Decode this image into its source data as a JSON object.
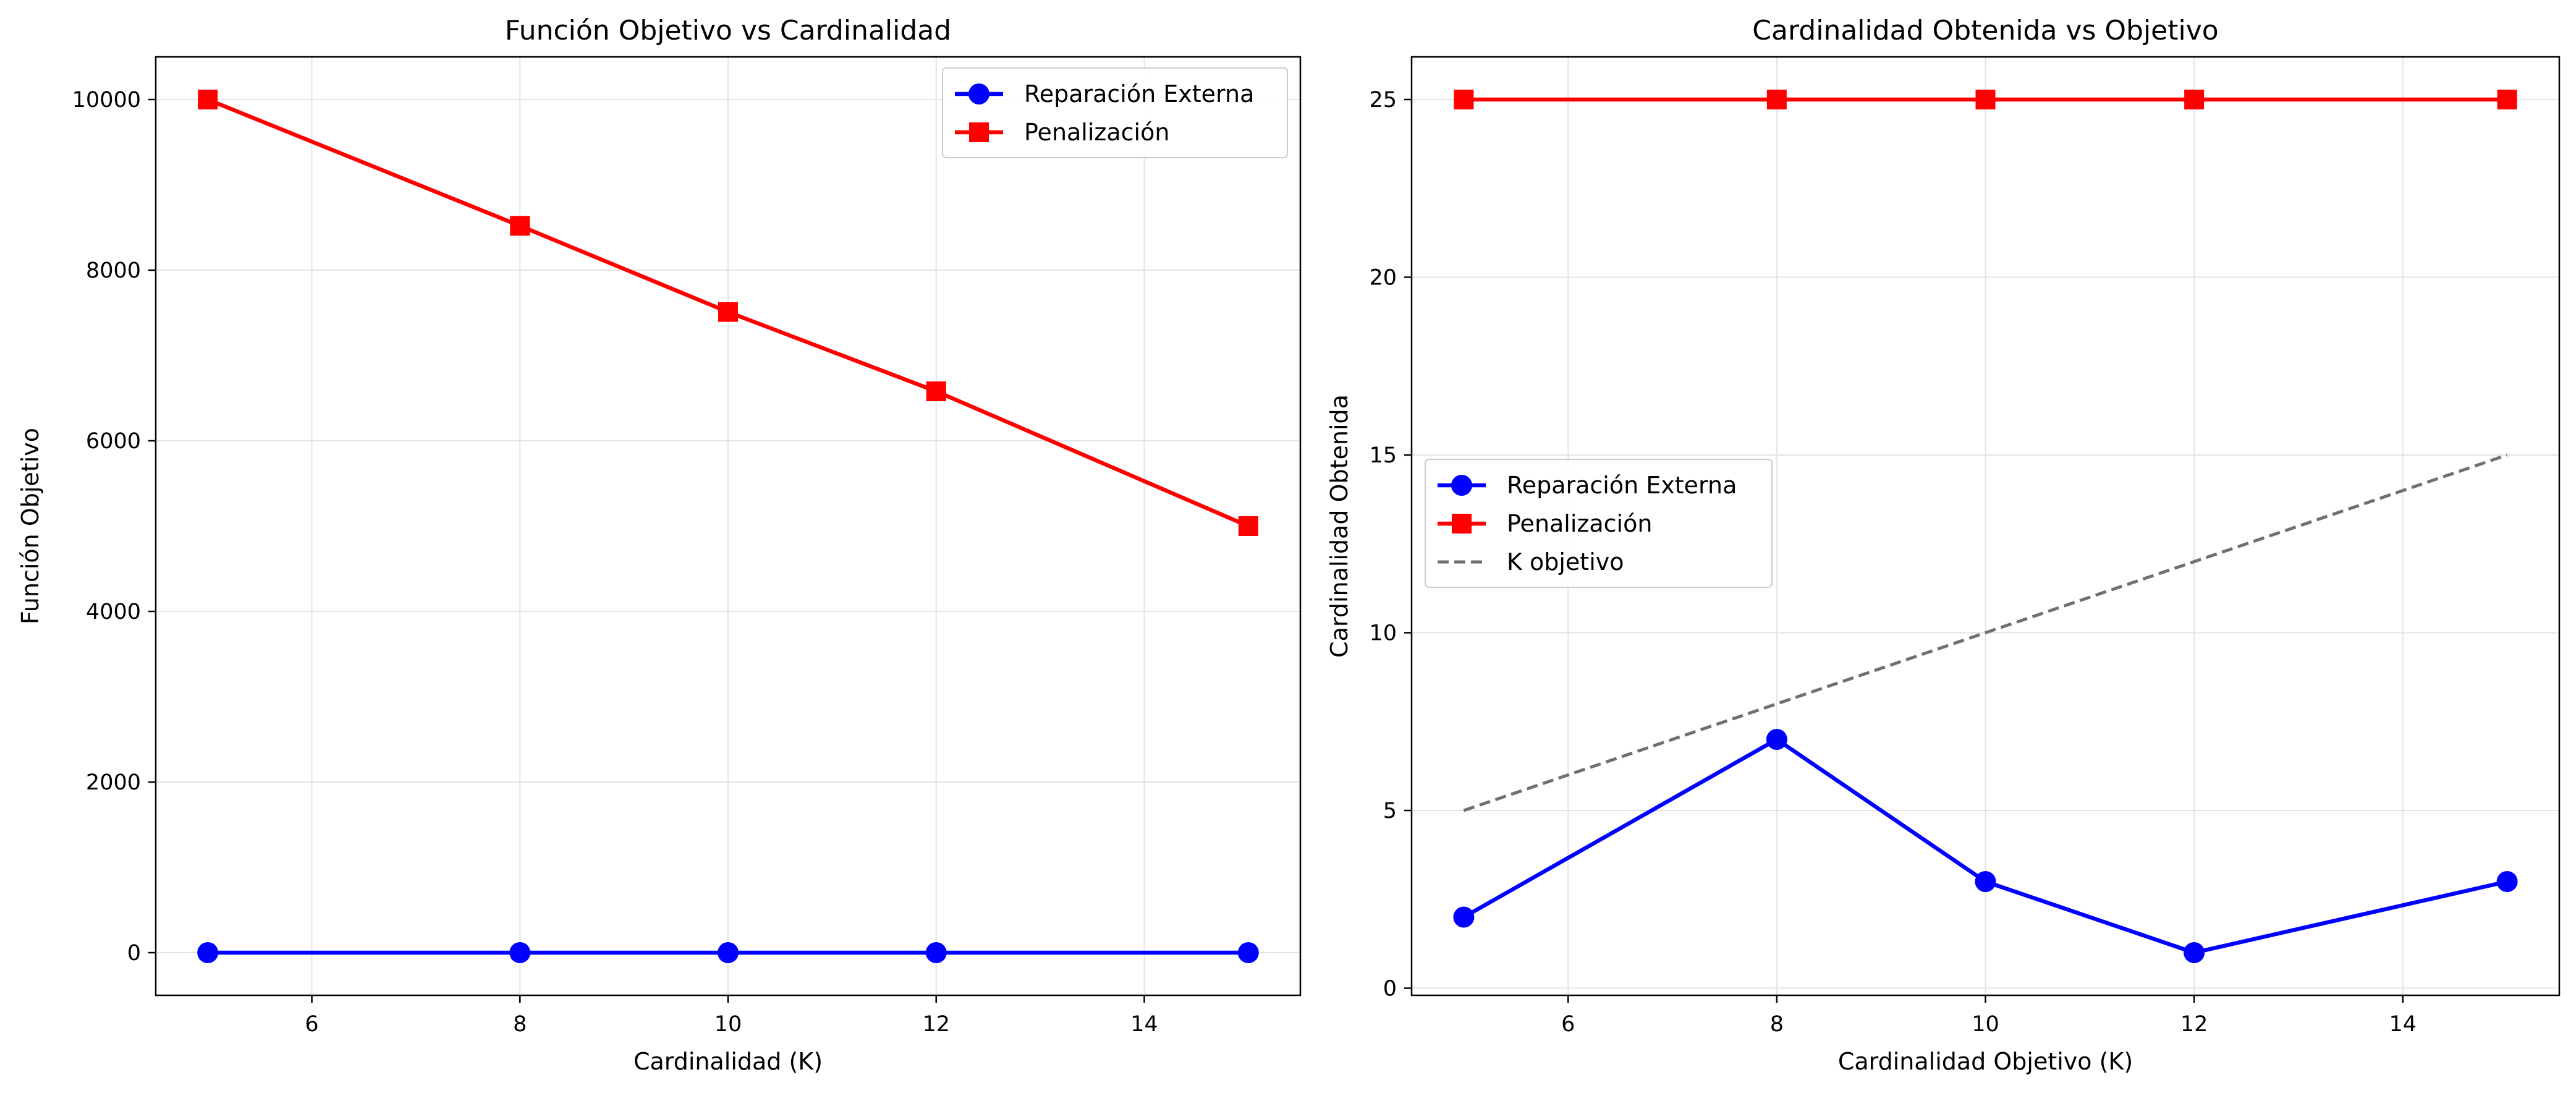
{
  "chart_data": [
    {
      "type": "line",
      "title": "Función Objetivo vs Cardinalidad",
      "xlabel": "Cardinalidad (K)",
      "ylabel": "Función Objetivo",
      "xlim": [
        4.5,
        15.5
      ],
      "ylim": [
        -500,
        10500
      ],
      "xticks": [
        6,
        8,
        10,
        12,
        14
      ],
      "yticks": [
        0,
        2000,
        4000,
        6000,
        8000,
        10000
      ],
      "grid": true,
      "legend_position": "upper right",
      "x": [
        5,
        8,
        10,
        12,
        15
      ],
      "series": [
        {
          "name": "Reparación Externa",
          "values": [
            0,
            0,
            0,
            0,
            0
          ],
          "color": "#0000ff",
          "marker": "circle",
          "style": "solid"
        },
        {
          "name": "Penalización",
          "values": [
            10000,
            8520,
            7510,
            6580,
            5000
          ],
          "color": "#ff0000",
          "marker": "square",
          "style": "solid"
        }
      ]
    },
    {
      "type": "line",
      "title": "Cardinalidad Obtenida vs Objetivo",
      "xlabel": "Cardinalidad Objetivo (K)",
      "ylabel": "Cardinalidad Obtenida",
      "xlim": [
        4.5,
        15.5
      ],
      "ylim": [
        -0.2,
        26.2
      ],
      "xticks": [
        6,
        8,
        10,
        12,
        14
      ],
      "yticks": [
        0,
        5,
        10,
        15,
        20,
        25
      ],
      "grid": true,
      "legend_position": "center left",
      "x": [
        5,
        8,
        10,
        12,
        15
      ],
      "series": [
        {
          "name": "Reparación Externa",
          "values": [
            2,
            7,
            3,
            1,
            3
          ],
          "color": "#0000ff",
          "marker": "circle",
          "style": "solid"
        },
        {
          "name": "Penalización",
          "values": [
            25,
            25,
            25,
            25,
            25
          ],
          "color": "#ff0000",
          "marker": "square",
          "style": "solid"
        },
        {
          "name": "K objetivo",
          "values": [
            5,
            8,
            10,
            12,
            15
          ],
          "color": "#707070",
          "marker": "none",
          "style": "dashed"
        }
      ]
    }
  ]
}
